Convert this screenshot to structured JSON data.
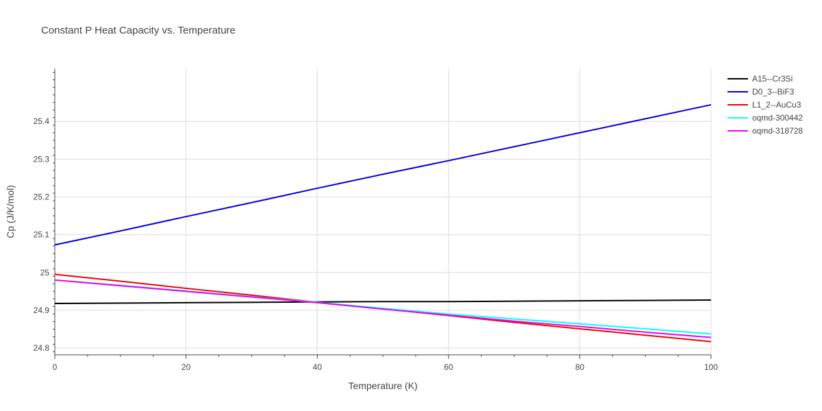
{
  "chart_data": {
    "type": "line",
    "title": "Constant P Heat Capacity vs. Temperature",
    "xlabel": "Temperature (K)",
    "ylabel": "Cp (J/K/mol)",
    "xlim": [
      0,
      100
    ],
    "ylim": [
      24.782,
      25.54
    ],
    "x_ticks": [
      0,
      20,
      40,
      60,
      80,
      100
    ],
    "y_ticks": [
      24.8,
      24.9,
      25,
      25.1,
      25.2,
      25.3,
      25.4
    ],
    "y_tick_labels": [
      "24.8",
      "24.9",
      "25",
      "25.1",
      "25.2",
      "25.3",
      "25.4"
    ],
    "grid": true,
    "legend_position": "top-right",
    "x": [
      0,
      10,
      20,
      30,
      40,
      50,
      60,
      70,
      80,
      90,
      100
    ],
    "series": [
      {
        "name": "A15--Cr3Si",
        "color": "#000000",
        "values": [
          24.918,
          24.919,
          24.92,
          24.921,
          24.922,
          24.923,
          24.923,
          24.924,
          24.925,
          24.926,
          24.927
        ]
      },
      {
        "name": "D0_3--BiF3",
        "color": "#0000dd",
        "values": [
          25.073,
          25.11,
          25.148,
          25.185,
          25.223,
          25.26,
          25.296,
          25.333,
          25.37,
          25.407,
          25.444
        ]
      },
      {
        "name": "L1_2--AuCu3",
        "color": "#ee0000",
        "values": [
          24.995,
          24.977,
          24.958,
          24.94,
          24.921,
          24.904,
          24.886,
          24.868,
          24.851,
          24.834,
          24.817
        ]
      },
      {
        "name": "oqmd-300442",
        "color": "#00ffff",
        "values": [
          24.98,
          24.966,
          24.951,
          24.936,
          24.921,
          24.905,
          24.89,
          24.877,
          24.864,
          24.851,
          24.837
        ]
      },
      {
        "name": "oqmd-318728",
        "color": "#ee00ee",
        "values": [
          24.98,
          24.965,
          24.95,
          24.935,
          24.92,
          24.903,
          24.887,
          24.871,
          24.857,
          24.842,
          24.828
        ]
      }
    ]
  }
}
